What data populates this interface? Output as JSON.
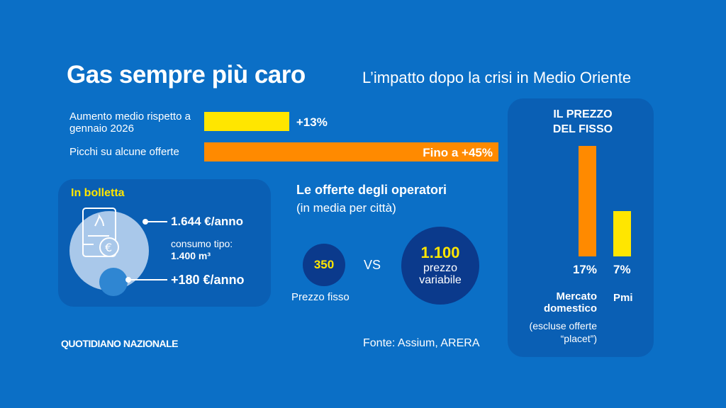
{
  "header": {
    "title": "Gas sempre più caro",
    "subtitle": "L’impatto dopo la crisi in Medio Oriente"
  },
  "colors": {
    "background": "#0b6fc6",
    "panel": "#0a5fb4",
    "yellow": "#ffe600",
    "orange": "#ff8a00",
    "navy": "#0b3a8c"
  },
  "chart_data": [
    {
      "type": "bar",
      "orientation": "horizontal",
      "categories": [
        "Aumento medio rispetto a gennaio 2026",
        "Picchi su alcune offerte"
      ],
      "values": [
        13,
        45
      ],
      "data_labels": [
        "+13%",
        "Fino a +45%"
      ],
      "unit": "%"
    },
    {
      "type": "bar",
      "title": "IL PREZZO DEL FISSO",
      "categories": [
        "Mercato domestico",
        "Pmi"
      ],
      "category_notes": [
        "(escluse offerte “placet”)",
        ""
      ],
      "values": [
        17,
        7
      ],
      "data_labels": [
        "17%",
        "7%"
      ],
      "unit": "%"
    }
  ],
  "bill": {
    "title": "In bolletta",
    "annual": "1.644 €/anno",
    "consumption_label": "consumo tipo:",
    "consumption_value": "1.400 m³",
    "increase": "+180 €/anno"
  },
  "offers": {
    "title": "Le offerte degli operatori",
    "subtitle": "(in media per città)",
    "fixed_value": "350",
    "fixed_label": "Prezzo fisso",
    "vs": "VS",
    "variable_value": "1.100",
    "variable_label": "prezzo variabile"
  },
  "footer": {
    "brand": "QUOTIDIANO NAZIONALE",
    "source": "Fonte: Assium, ARERA"
  }
}
